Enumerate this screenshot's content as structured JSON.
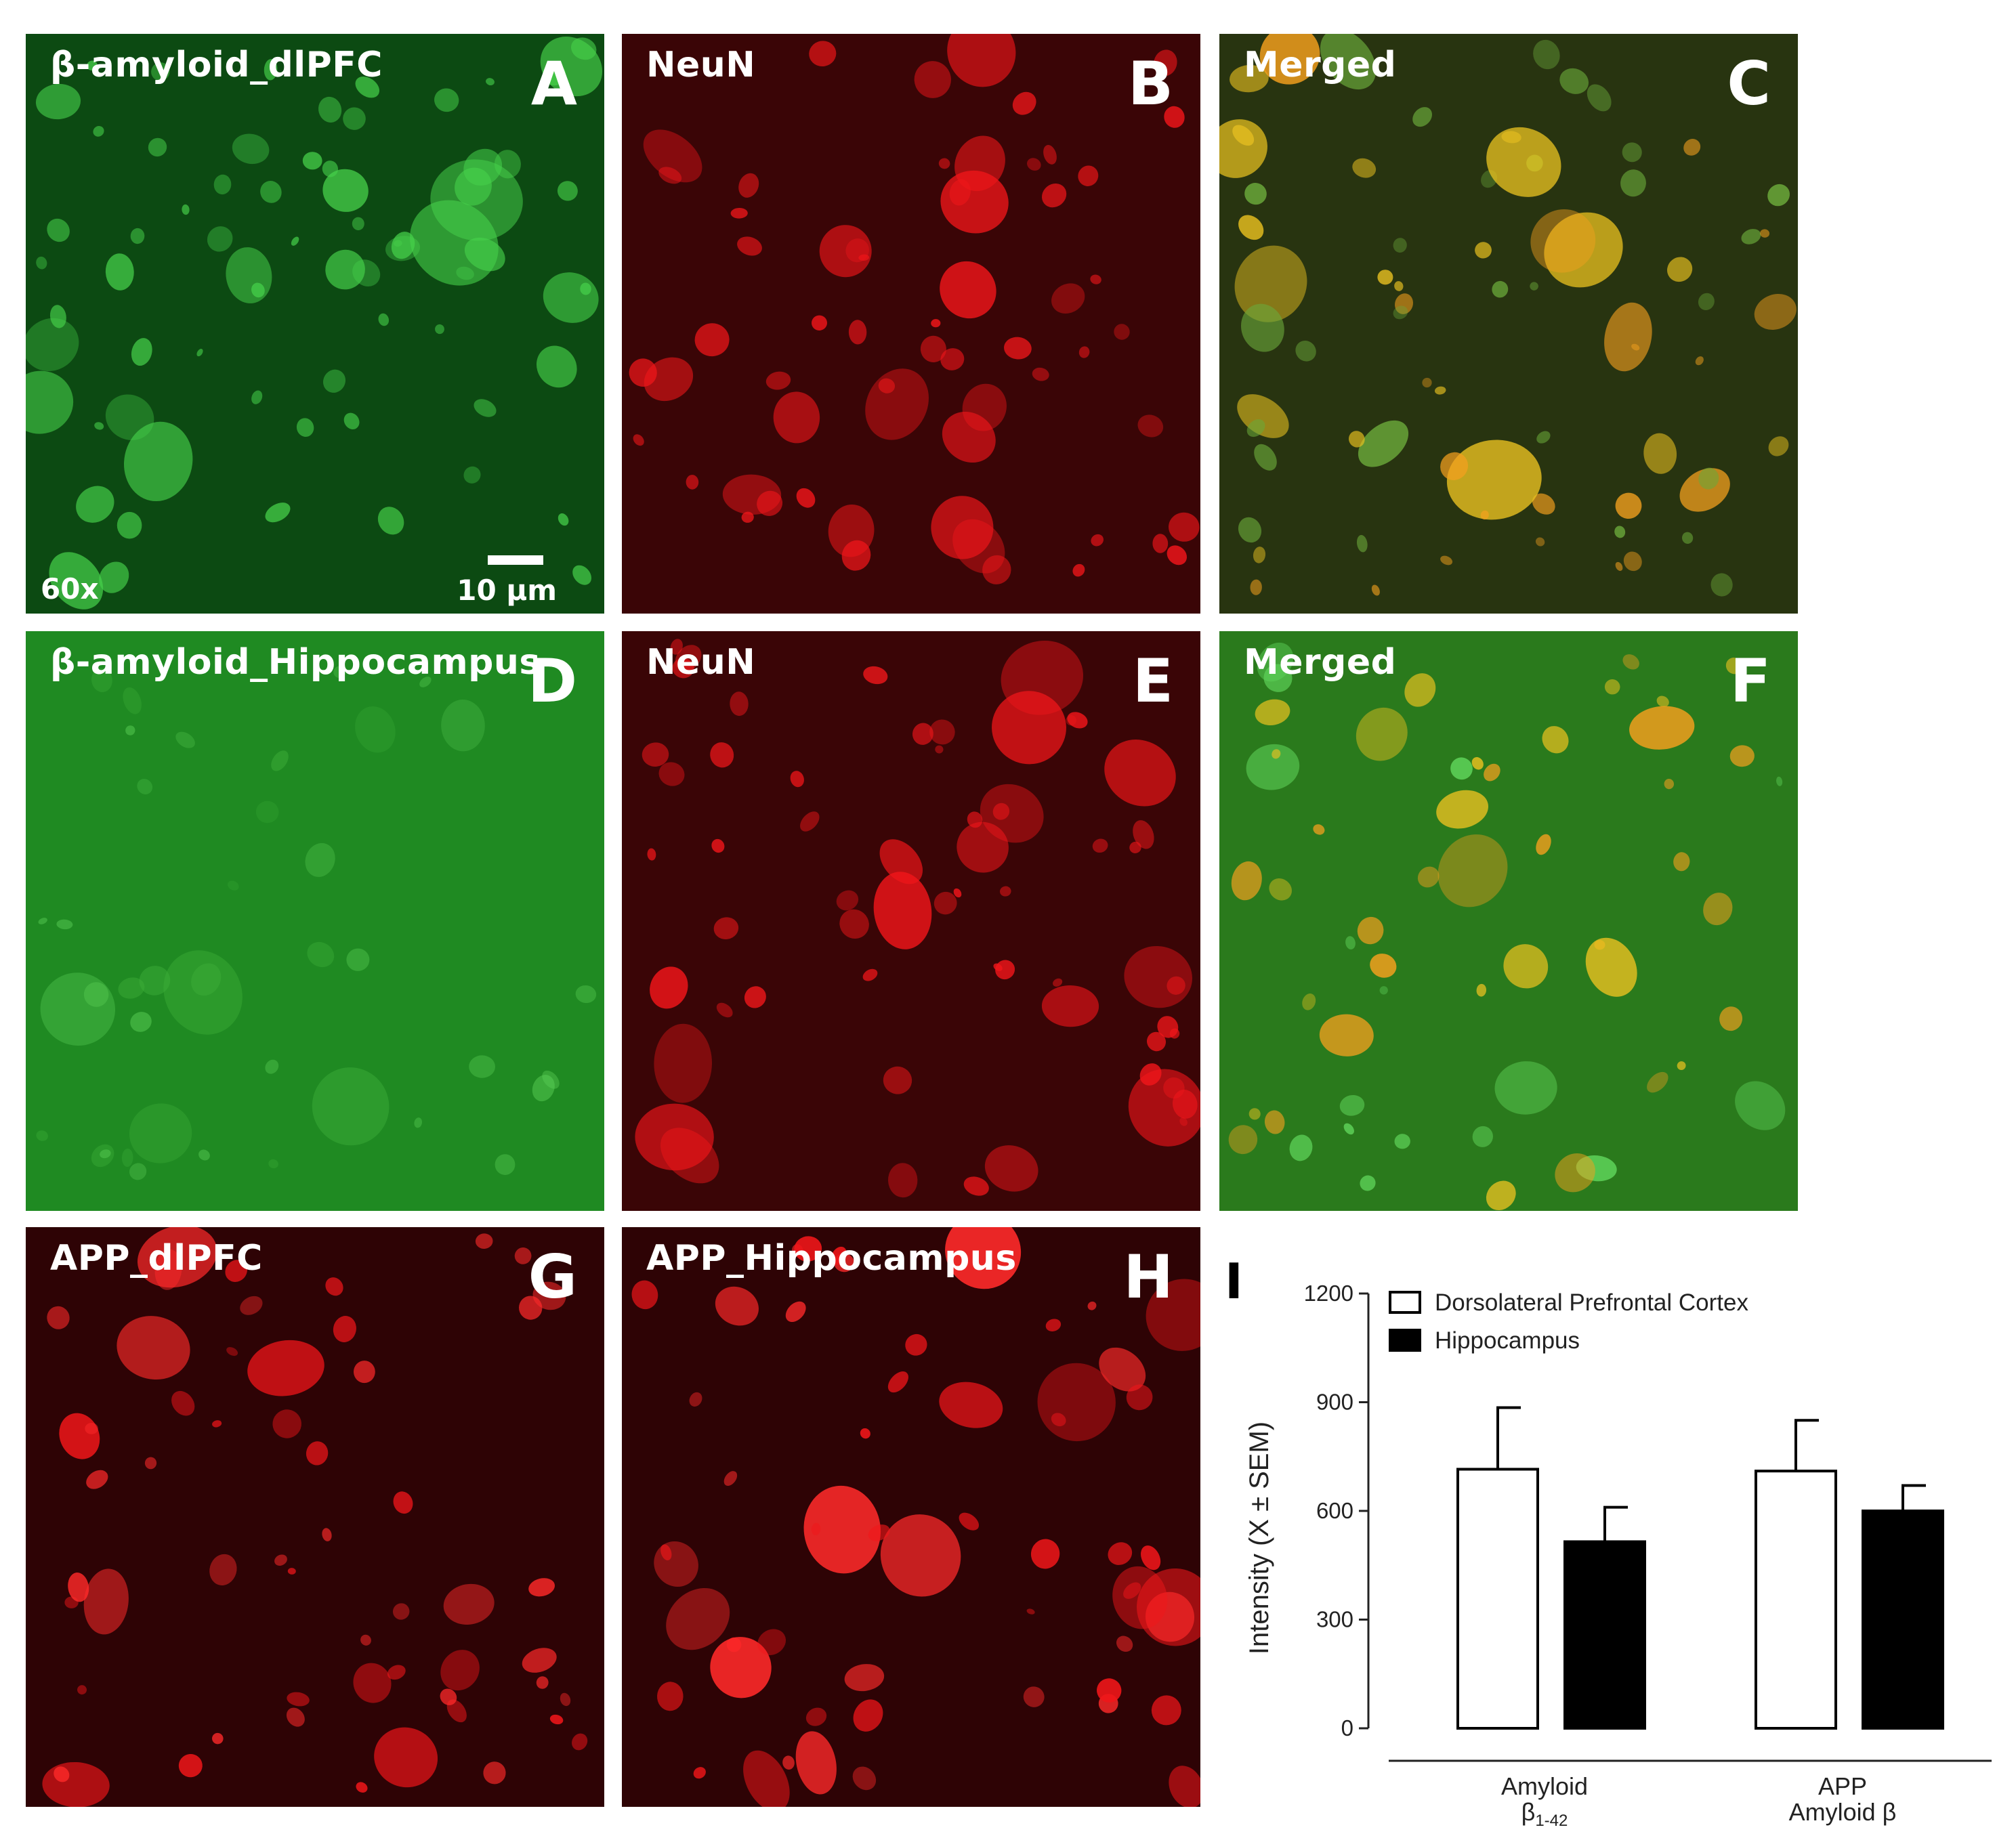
{
  "panels": [
    {
      "id": "A",
      "label": "β-amyloid_dlPFC",
      "letter": "A",
      "tone": "green",
      "mag": "60x",
      "scale": "10 µm"
    },
    {
      "id": "B",
      "label": "NeuN",
      "letter": "B",
      "tone": "red"
    },
    {
      "id": "C",
      "label": "Merged",
      "letter": "C",
      "tone": "merged-dark"
    },
    {
      "id": "D",
      "label": "β-amyloid_Hippocampus",
      "letter": "D",
      "tone": "green-bright"
    },
    {
      "id": "E",
      "label": "NeuN",
      "letter": "E",
      "tone": "red"
    },
    {
      "id": "F",
      "label": "Merged",
      "letter": "F",
      "tone": "merged-green"
    },
    {
      "id": "G",
      "label": "APP_dlPFC",
      "letter": "G",
      "tone": "red-app"
    },
    {
      "id": "H",
      "label": "APP_Hippocampus",
      "letter": "H",
      "tone": "red-app"
    }
  ],
  "panel_letter_I": "I",
  "colors": {
    "green": "#0c4a12",
    "green_bright": "#1f8a22",
    "red": "#3a0506",
    "red_app": "#2e0305",
    "merged_dark": "#283410",
    "merged_green": "#2a7a1c",
    "cell_green": "#47d24b",
    "cell_red": "#f0161a",
    "cell_orange": "#f4a01e"
  },
  "chart_data": {
    "type": "bar",
    "categories": [
      "Amyloid β1-42",
      "APP Amyloid β"
    ],
    "category_labels": [
      {
        "line1": "Amyloid",
        "line2_base": "β",
        "line2_sub": "1-42"
      },
      {
        "line1": "APP",
        "line2_base": "Amyloid β",
        "line2_sub": ""
      }
    ],
    "series": [
      {
        "name": "Dorsolateral Prefrontal  Cortex",
        "fill": "#ffffff",
        "values": [
          715,
          710
        ],
        "errors": [
          170,
          140
        ]
      },
      {
        "name": "Hippocampus",
        "fill": "#000000",
        "values": [
          515,
          600
        ],
        "errors": [
          95,
          70
        ]
      }
    ],
    "ylabel": "Intensity (X ± SEM)",
    "ylim": [
      0,
      1200
    ],
    "yticks": [
      0,
      300,
      600,
      900,
      1200
    ],
    "legend_position": "top-left",
    "grid": false
  }
}
